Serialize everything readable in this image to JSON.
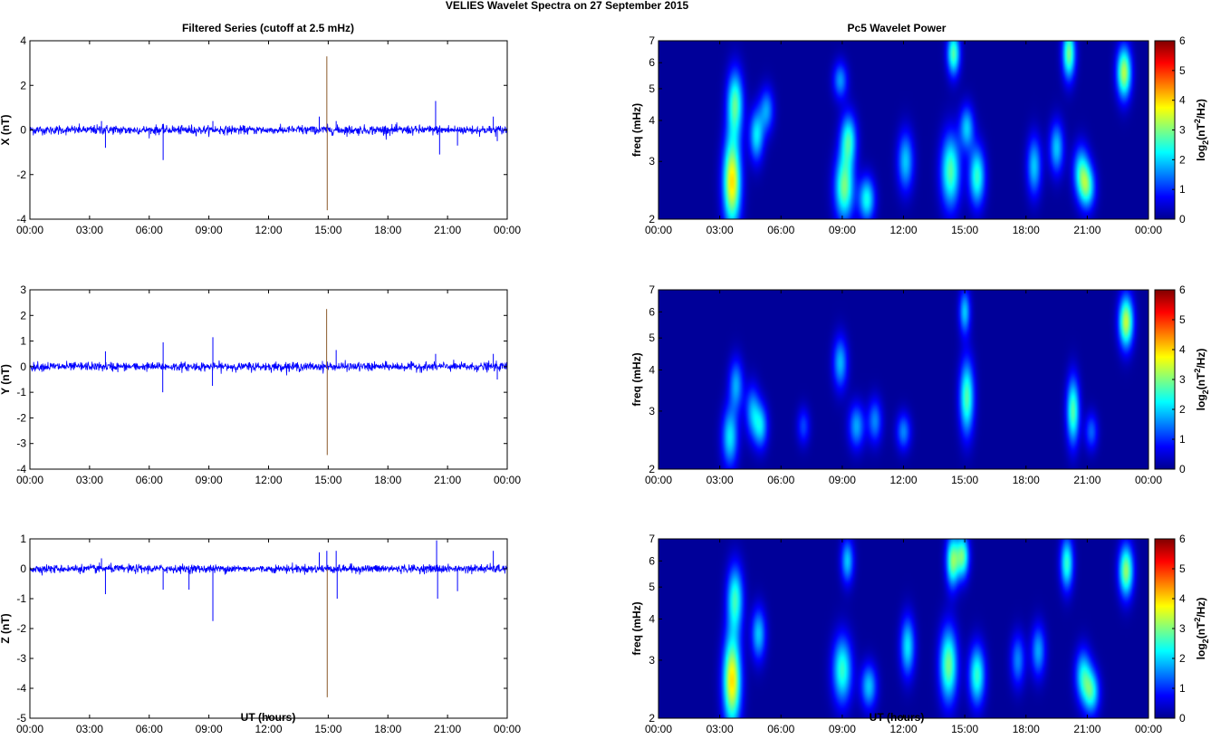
{
  "figure": {
    "title": "VELIES Wavelet Spectra on 27 September 2015",
    "left_title": "Filtered Series (cutoff at 2.5 mHz)",
    "right_title": "Pc5 Wavelet Power",
    "xlabel": "UT (hours)"
  },
  "time_ticks": [
    "00:00",
    "03:00",
    "06:00",
    "09:00",
    "12:00",
    "15:00",
    "18:00",
    "21:00",
    "00:00"
  ],
  "colors": {
    "trace": "#0000ff",
    "spike": "#8b5a2b",
    "background_power": "#00008f",
    "colormap": "jet"
  },
  "chart_data": [
    {
      "type": "line",
      "ylabel": "X (nT)",
      "x_range_hours": [
        0,
        24
      ],
      "ylim": [
        -4,
        4
      ],
      "yticks": [
        "4",
        "2",
        "0",
        "-2",
        "-4"
      ],
      "yticks_values": [
        4,
        2,
        0,
        -2,
        -4
      ],
      "noise_amplitude": 0.12,
      "series": [
        {
          "values_note_none": "",
          "spikes": [
            {
              "t": 3.8,
              "v": -0.8
            },
            {
              "t": 3.6,
              "v": 0.4
            },
            {
              "t": 6.7,
              "v": -1.35
            },
            {
              "t": 9.2,
              "v": 0.4
            },
            {
              "t": 14.55,
              "v": 0.6
            },
            {
              "t": 14.93,
              "v": 3.3,
              "special": true
            },
            {
              "t": 14.95,
              "v": -3.6,
              "special": true
            },
            {
              "t": 15.4,
              "v": 0.4
            },
            {
              "t": 20.4,
              "v": 1.3
            },
            {
              "t": 20.6,
              "v": -1.1
            },
            {
              "t": 21.5,
              "v": -0.7
            },
            {
              "t": 23.3,
              "v": 0.6
            },
            {
              "t": 23.5,
              "v": -0.5
            }
          ]
        }
      ]
    },
    {
      "type": "line",
      "ylabel": "Y (nT)",
      "x_range_hours": [
        0,
        24
      ],
      "ylim": [
        -4,
        3
      ],
      "yticks": [
        "3",
        "2",
        "1",
        "0",
        "-1",
        "-2",
        "-3",
        "-4"
      ],
      "yticks_values": [
        3,
        2,
        1,
        0,
        -1,
        -2,
        -3,
        -4
      ],
      "noise_amplitude": 0.1,
      "series": [
        {
          "spikes": [
            {
              "t": 3.8,
              "v": 0.6
            },
            {
              "t": 6.7,
              "v": 0.95
            },
            {
              "t": 6.68,
              "v": -1.0
            },
            {
              "t": 9.2,
              "v": 1.15
            },
            {
              "t": 9.18,
              "v": -0.75
            },
            {
              "t": 14.92,
              "v": 2.25,
              "special": true
            },
            {
              "t": 14.95,
              "v": -3.45,
              "special": true
            },
            {
              "t": 15.4,
              "v": 0.65
            },
            {
              "t": 20.4,
              "v": 0.5
            },
            {
              "t": 23.3,
              "v": 0.5
            },
            {
              "t": 23.5,
              "v": -0.5
            }
          ]
        }
      ]
    },
    {
      "type": "line",
      "ylabel": "Z (nT)",
      "x_range_hours": [
        0,
        24
      ],
      "ylim": [
        -5,
        1
      ],
      "yticks": [
        "1",
        "0",
        "-1",
        "-2",
        "-3",
        "-4",
        "-5"
      ],
      "yticks_values": [
        1,
        0,
        -1,
        -2,
        -3,
        -4,
        -5
      ],
      "noise_amplitude": 0.08,
      "series": [
        {
          "spikes": [
            {
              "t": 3.6,
              "v": 0.35
            },
            {
              "t": 3.8,
              "v": -0.85
            },
            {
              "t": 6.7,
              "v": -0.7
            },
            {
              "t": 8.0,
              "v": -0.7
            },
            {
              "t": 9.2,
              "v": -1.75
            },
            {
              "t": 14.55,
              "v": 0.55
            },
            {
              "t": 14.93,
              "v": 0.6
            },
            {
              "t": 14.95,
              "v": -4.3,
              "special": true
            },
            {
              "t": 15.4,
              "v": 0.6
            },
            {
              "t": 15.45,
              "v": -1.0
            },
            {
              "t": 20.45,
              "v": 0.95
            },
            {
              "t": 20.5,
              "v": -1.0
            },
            {
              "t": 21.5,
              "v": -0.75
            },
            {
              "t": 23.3,
              "v": 0.6
            }
          ]
        }
      ]
    },
    {
      "type": "heatmap",
      "ylabel": "freq (mHz)",
      "y_scale": "log",
      "ylim": [
        2,
        7
      ],
      "yticks": [
        "7",
        "6",
        "5",
        "4",
        "3",
        "2"
      ],
      "yticks_values": [
        7,
        6,
        5,
        4,
        3,
        2
      ],
      "x_range_hours": [
        0,
        24
      ],
      "colorbar": {
        "label": "log2(nT2/Hz)",
        "range": [
          0,
          6
        ],
        "ticks": [
          "6",
          "5",
          "4",
          "3",
          "2",
          "1",
          "0"
        ]
      },
      "blobs": [
        {
          "t": 3.6,
          "f": 2.6,
          "amp": 3.8,
          "ft": 0.55,
          "ff": 2.4
        },
        {
          "t": 3.75,
          "f": 4.5,
          "amp": 2.6,
          "ft": 0.5,
          "ff": 1.8
        },
        {
          "t": 4.8,
          "f": 3.6,
          "amp": 2.0,
          "ft": 0.45,
          "ff": 1.4
        },
        {
          "t": 5.3,
          "f": 4.3,
          "amp": 1.5,
          "ft": 0.45,
          "ff": 1.2
        },
        {
          "t": 9.1,
          "f": 2.5,
          "amp": 2.8,
          "ft": 0.6,
          "ff": 1.8
        },
        {
          "t": 9.3,
          "f": 3.5,
          "amp": 2.3,
          "ft": 0.5,
          "ff": 1.4
        },
        {
          "t": 10.2,
          "f": 2.3,
          "amp": 2.2,
          "ft": 0.5,
          "ff": 1.2
        },
        {
          "t": 8.9,
          "f": 5.3,
          "amp": 1.5,
          "ft": 0.45,
          "ff": 1.0
        },
        {
          "t": 12.1,
          "f": 3.0,
          "amp": 1.8,
          "ft": 0.5,
          "ff": 1.6
        },
        {
          "t": 14.3,
          "f": 2.8,
          "amp": 2.6,
          "ft": 0.6,
          "ff": 2.0
        },
        {
          "t": 14.45,
          "f": 6.4,
          "amp": 2.6,
          "ft": 0.4,
          "ff": 1.2
        },
        {
          "t": 15.6,
          "f": 2.7,
          "amp": 2.4,
          "ft": 0.5,
          "ff": 1.6
        },
        {
          "t": 15.1,
          "f": 3.8,
          "amp": 1.8,
          "ft": 0.45,
          "ff": 1.2
        },
        {
          "t": 18.4,
          "f": 2.9,
          "amp": 1.8,
          "ft": 0.45,
          "ff": 1.6
        },
        {
          "t": 19.5,
          "f": 3.3,
          "amp": 1.8,
          "ft": 0.45,
          "ff": 1.4
        },
        {
          "t": 20.1,
          "f": 6.4,
          "amp": 2.8,
          "ft": 0.4,
          "ff": 1.4
        },
        {
          "t": 20.7,
          "f": 2.8,
          "amp": 2.0,
          "ft": 0.5,
          "ff": 1.4
        },
        {
          "t": 21.0,
          "f": 2.5,
          "amp": 2.2,
          "ft": 0.5,
          "ff": 1.2
        },
        {
          "t": 22.8,
          "f": 5.6,
          "amp": 3.2,
          "ft": 0.45,
          "ff": 1.4
        }
      ]
    },
    {
      "type": "heatmap",
      "ylabel": "freq (mHz)",
      "y_scale": "log",
      "ylim": [
        2,
        7
      ],
      "yticks": [
        "7",
        "6",
        "5",
        "4",
        "3",
        "2"
      ],
      "yticks_values": [
        7,
        6,
        5,
        4,
        3,
        2
      ],
      "x_range_hours": [
        0,
        24
      ],
      "colorbar": {
        "label": "log2(nT2/Hz)",
        "range": [
          0,
          6
        ],
        "ticks": [
          "6",
          "5",
          "4",
          "3",
          "2",
          "1",
          "0"
        ]
      },
      "blobs": [
        {
          "t": 3.5,
          "f": 2.5,
          "amp": 2.0,
          "ft": 0.5,
          "ff": 1.6
        },
        {
          "t": 3.8,
          "f": 3.6,
          "amp": 1.6,
          "ft": 0.45,
          "ff": 1.4
        },
        {
          "t": 4.6,
          "f": 3.0,
          "amp": 1.5,
          "ft": 0.45,
          "ff": 1.4
        },
        {
          "t": 5.0,
          "f": 2.7,
          "amp": 1.8,
          "ft": 0.45,
          "ff": 1.2
        },
        {
          "t": 7.1,
          "f": 2.7,
          "amp": 1.0,
          "ft": 0.4,
          "ff": 1.0
        },
        {
          "t": 8.9,
          "f": 4.2,
          "amp": 1.7,
          "ft": 0.45,
          "ff": 1.4
        },
        {
          "t": 9.7,
          "f": 2.7,
          "amp": 1.6,
          "ft": 0.5,
          "ff": 1.2
        },
        {
          "t": 10.6,
          "f": 2.8,
          "amp": 1.4,
          "ft": 0.45,
          "ff": 1.2
        },
        {
          "t": 12.0,
          "f": 2.6,
          "amp": 1.4,
          "ft": 0.45,
          "ff": 1.0
        },
        {
          "t": 15.1,
          "f": 3.3,
          "amp": 2.6,
          "ft": 0.45,
          "ff": 2.0
        },
        {
          "t": 15.0,
          "f": 6.0,
          "amp": 1.8,
          "ft": 0.35,
          "ff": 1.2
        },
        {
          "t": 20.3,
          "f": 3.0,
          "amp": 2.6,
          "ft": 0.4,
          "ff": 1.8
        },
        {
          "t": 21.2,
          "f": 2.6,
          "amp": 1.2,
          "ft": 0.4,
          "ff": 1.0
        },
        {
          "t": 22.9,
          "f": 5.6,
          "amp": 3.3,
          "ft": 0.45,
          "ff": 1.4
        }
      ]
    },
    {
      "type": "heatmap",
      "ylabel": "freq (mHz)",
      "y_scale": "log",
      "ylim": [
        2,
        7
      ],
      "yticks": [
        "7",
        "6",
        "5",
        "4",
        "3",
        "2"
      ],
      "yticks_values": [
        7,
        6,
        5,
        4,
        3,
        2
      ],
      "x_range_hours": [
        0,
        24
      ],
      "colorbar": {
        "label": "log2(nT2/Hz)",
        "range": [
          0,
          6
        ],
        "ticks": [
          "6",
          "5",
          "4",
          "3",
          "2",
          "1",
          "0"
        ]
      },
      "blobs": [
        {
          "t": 3.6,
          "f": 2.6,
          "amp": 3.8,
          "ft": 0.55,
          "ff": 2.4
        },
        {
          "t": 3.75,
          "f": 4.6,
          "amp": 2.4,
          "ft": 0.5,
          "ff": 1.8
        },
        {
          "t": 4.9,
          "f": 3.6,
          "amp": 1.8,
          "ft": 0.45,
          "ff": 1.4
        },
        {
          "t": 9.0,
          "f": 2.8,
          "amp": 2.4,
          "ft": 0.6,
          "ff": 1.8
        },
        {
          "t": 9.25,
          "f": 6.0,
          "amp": 1.8,
          "ft": 0.4,
          "ff": 1.2
        },
        {
          "t": 10.3,
          "f": 2.5,
          "amp": 1.8,
          "ft": 0.5,
          "ff": 1.2
        },
        {
          "t": 12.2,
          "f": 3.3,
          "amp": 2.0,
          "ft": 0.45,
          "ff": 1.6
        },
        {
          "t": 14.2,
          "f": 2.9,
          "amp": 2.8,
          "ft": 0.55,
          "ff": 2.0
        },
        {
          "t": 14.4,
          "f": 6.0,
          "amp": 2.8,
          "ft": 0.4,
          "ff": 1.4
        },
        {
          "t": 14.9,
          "f": 6.2,
          "amp": 2.6,
          "ft": 0.4,
          "ff": 1.2
        },
        {
          "t": 15.6,
          "f": 2.7,
          "amp": 2.4,
          "ft": 0.5,
          "ff": 1.6
        },
        {
          "t": 17.6,
          "f": 3.0,
          "amp": 1.4,
          "ft": 0.45,
          "ff": 1.4
        },
        {
          "t": 18.6,
          "f": 3.2,
          "amp": 1.6,
          "ft": 0.45,
          "ff": 1.4
        },
        {
          "t": 20.0,
          "f": 5.9,
          "amp": 2.4,
          "ft": 0.4,
          "ff": 1.4
        },
        {
          "t": 20.8,
          "f": 2.7,
          "amp": 2.0,
          "ft": 0.5,
          "ff": 1.4
        },
        {
          "t": 21.2,
          "f": 2.4,
          "amp": 2.2,
          "ft": 0.5,
          "ff": 1.2
        },
        {
          "t": 22.9,
          "f": 5.6,
          "amp": 3.0,
          "ft": 0.45,
          "ff": 1.4
        }
      ]
    }
  ]
}
